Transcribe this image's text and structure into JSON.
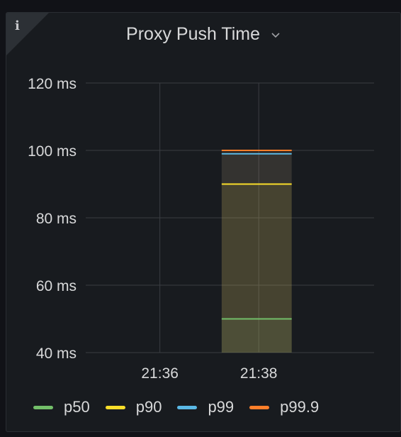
{
  "panel": {
    "title": "Proxy Push Time",
    "info_icon": "info-icon",
    "menu_icon": "chevron-down-icon"
  },
  "chart_data": {
    "type": "line",
    "title": "Proxy Push Time",
    "xlabel": "",
    "ylabel": "",
    "y_unit": "ms",
    "ylim": [
      40,
      120
    ],
    "yticks": [
      40,
      60,
      80,
      100,
      120
    ],
    "ytick_labels": [
      "40 ms",
      "60 ms",
      "80 ms",
      "100 ms",
      "120 ms"
    ],
    "xlim": [
      "21:34:30",
      "21:40:20"
    ],
    "xticks": [
      "21:36",
      "21:38"
    ],
    "x": [
      "21:37:15",
      "21:38:40"
    ],
    "grid": true,
    "legend_position": "bottom-left",
    "series": [
      {
        "name": "p50",
        "color": "#73bf69",
        "values": [
          50,
          50
        ]
      },
      {
        "name": "p90",
        "color": "#fade2a",
        "values": [
          90,
          90
        ]
      },
      {
        "name": "p99",
        "color": "#5ab9e6",
        "values": [
          99,
          99
        ]
      },
      {
        "name": "p99.9",
        "color": "#ff7f2a",
        "values": [
          100,
          100
        ]
      }
    ]
  }
}
